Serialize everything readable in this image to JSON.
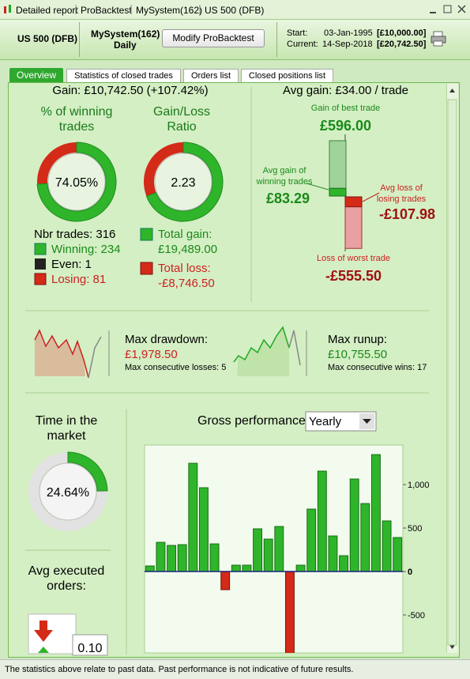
{
  "window": {
    "title_items": [
      "Detailed report",
      "ProBacktest",
      "MySystem(162)",
      "US 500 (DFB)"
    ]
  },
  "header": {
    "instrument": "US 500 (DFB)",
    "system": "MySystem(162)",
    "timeframe": "Daily",
    "button": "Modify ProBacktest",
    "start_label": "Start:",
    "start_date": "03-Jan-1995",
    "start_capital": "[£10,000.00]",
    "current_label": "Current:",
    "current_date": "14-Sep-2018",
    "current_capital": "[£20,742.50]"
  },
  "tabs": [
    "Overview",
    "Statistics of closed trades",
    "Orders list",
    "Closed positions list"
  ],
  "gain": "Gain: £10,742.50 (+107.42%)",
  "winning": {
    "title": "% of winning trades",
    "value": 74.05,
    "value_label": "74.05%"
  },
  "ratio": {
    "title": "Gain/Loss Ratio",
    "value": "2.23"
  },
  "trades": {
    "total": "Nbr trades: 316",
    "winning": "Winning: 234",
    "even": "Even: 1",
    "losing": "Losing: 81"
  },
  "totals": {
    "gain_label": "Total gain:",
    "gain": {
      "value": 19489.0,
      "label": "£19,489.00"
    },
    "loss_label": "Total loss:",
    "loss": {
      "value": -8746.5,
      "label": "-£8,746.50"
    }
  },
  "avg_gain": "Avg gain: £34.00 / trade",
  "trade_bars": [
    {
      "label": "Gain of best trade",
      "value": 596.0,
      "value_label": "£596.00"
    },
    {
      "label": "Avg gain of winning trades",
      "value": 83.29,
      "value_label": "£83.29"
    },
    {
      "label": "Avg loss of losing trades",
      "value": -107.98,
      "value_label": "-£107.98"
    },
    {
      "label": "Loss of worst trade",
      "value": -555.5,
      "value_label": "-£555.50"
    }
  ],
  "drawdown": {
    "label": "Max drawdown:",
    "value": "£1,978.50",
    "consecutive": "Max consecutive losses: 5"
  },
  "runup": {
    "label": "Max runup:",
    "value": "£10,755.50",
    "consecutive": "Max consecutive wins: 17"
  },
  "market": {
    "title": "Time in the market",
    "value": 24.64,
    "value_label": "24.64%"
  },
  "orders": {
    "title": "Avg executed orders:",
    "value": "0.10"
  },
  "chart_data": {
    "type": "bar",
    "title": "Gross performance",
    "period": "Yearly",
    "categories": [
      null,
      null,
      null,
      null,
      null,
      null,
      null,
      null,
      null,
      null,
      null,
      null,
      null,
      null,
      null,
      null,
      null,
      null,
      null,
      null,
      null,
      null,
      null,
      null
    ],
    "values": [
      64,
      336,
      300,
      309,
      1245,
      964,
      318,
      -209,
      73,
      73,
      491,
      373,
      518,
      -950,
      73,
      718,
      1155,
      409,
      182,
      1064,
      782,
      1345,
      582,
      391
    ],
    "ylim": [
      -1000,
      1455
    ],
    "yticks": [
      {
        "value": 1000,
        "label": "1,000"
      },
      500,
      0,
      -500
    ],
    "colors": {
      "positive": "#2fb52a",
      "negative": "#d42a18"
    }
  },
  "footer": "The statistics above relate to past data. Past performance is not indicative of future results."
}
